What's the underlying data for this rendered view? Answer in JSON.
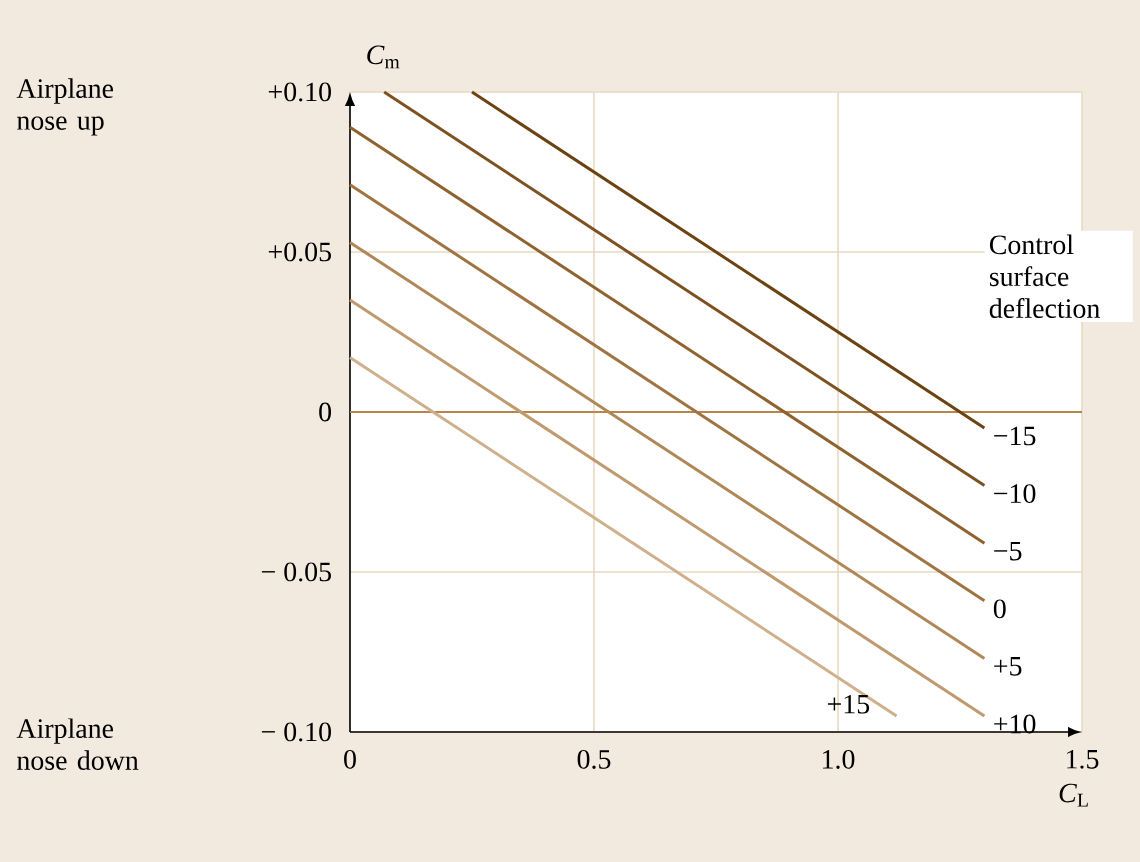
{
  "chart_data": {
    "type": "line",
    "xlabel": "*C*$_{L}$",
    "ylabel": "*C*$_{m}$",
    "legend_title": "Control surface deflection",
    "annotations": [
      "Airplane nose up",
      "Airplane nose down"
    ],
    "xlim": [
      0,
      1.5
    ],
    "ylim": [
      -0.1,
      0.1
    ],
    "xticks": [
      0,
      0.5,
      {
        "value": 1.0,
        "label": "1.0"
      },
      1.5
    ],
    "yticks": [
      {
        "value": -0.1,
        "label": "− 0.10"
      },
      {
        "value": -0.05,
        "label": "− 0.05"
      },
      0,
      {
        "value": 0.05,
        "label": "+0.05"
      },
      {
        "value": 0.1,
        "label": "+0.10"
      }
    ],
    "grid": true,
    "marker": "none",
    "line_style": "solid",
    "ref_lines": [
      {
        "axis": "y",
        "value": 0,
        "color": "#b8864b"
      }
    ],
    "series": [
      {
        "name": "−15",
        "color": "#6b4212",
        "x": [
          0.25,
          1.3
        ],
        "values": [
          0.1,
          -0.005
        ]
      },
      {
        "name": "−10",
        "color": "#7e5220",
        "x": [
          0.07,
          1.3
        ],
        "values": [
          0.1,
          -0.023
        ]
      },
      {
        "name": "−5",
        "color": "#8f6330",
        "x": [
          0,
          1.3
        ],
        "values": [
          0.089,
          -0.041
        ]
      },
      {
        "name": "0",
        "color": "#9f7442",
        "x": [
          0,
          1.3
        ],
        "values": [
          0.071,
          -0.059
        ]
      },
      {
        "name": "+5",
        "color": "#b08757",
        "x": [
          0,
          1.3
        ],
        "values": [
          0.053,
          -0.077
        ]
      },
      {
        "name": "+10",
        "color": "#bf9a6e",
        "x": [
          0,
          1.3
        ],
        "values": [
          0.035,
          -0.095
        ]
      },
      {
        "name": "+15",
        "color": "#cfb08c",
        "x": [
          0,
          1.12
        ],
        "values": [
          0.017,
          -0.095
        ]
      }
    ]
  }
}
